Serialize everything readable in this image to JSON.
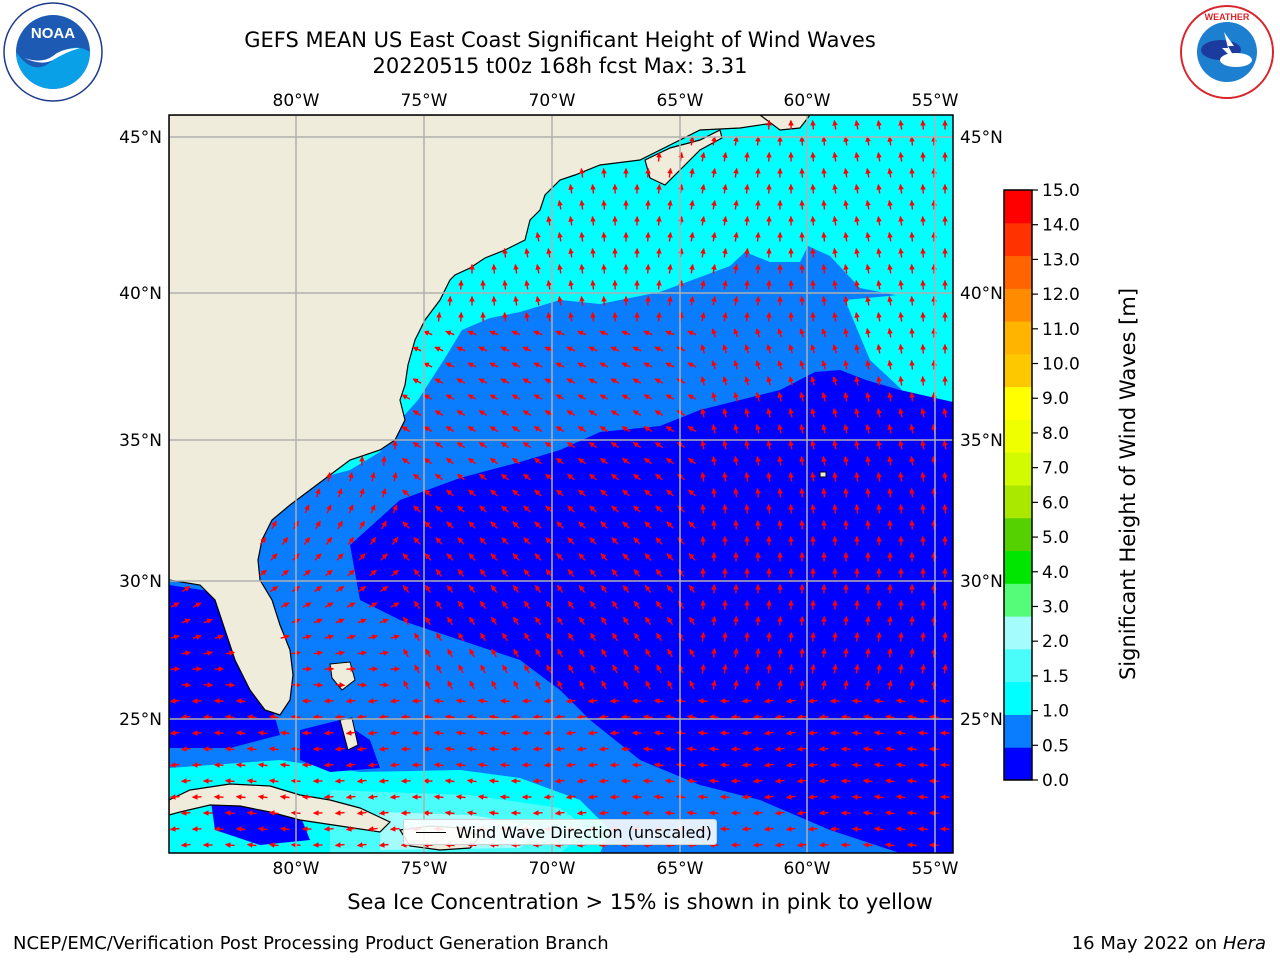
{
  "title": {
    "line1": "GEFS MEAN US East Coast Significant Height of Wind Waves",
    "line2": "20220515 t00z 168h fcst   Max: 3.31"
  },
  "map": {
    "region": "US East Coast / Western North Atlantic",
    "lon_labels": [
      "80°W",
      "75°W",
      "70°W",
      "65°W",
      "60°W",
      "55°W"
    ],
    "lat_labels": [
      "45°N",
      "40°N",
      "35°N",
      "30°N",
      "25°N"
    ],
    "arrow_color": "#ff0000",
    "land_color": "#efecdb",
    "legend_label": "Wind Wave Direction (unscaled)"
  },
  "colorbar": {
    "title": "Significant Height of Wind Waves [m]",
    "tick_labels": [
      "0.0",
      "0.5",
      "1.0",
      "1.5",
      "2.0",
      "3.0",
      "4.0",
      "5.0",
      "6.0",
      "7.0",
      "8.0",
      "9.0",
      "10.0",
      "11.0",
      "12.0",
      "13.0",
      "14.0",
      "15.0"
    ],
    "colors": [
      "#0000ff",
      "#0a7dff",
      "#00ffff",
      "#4afcfa",
      "#a5fcfd",
      "#55fc7a",
      "#00e600",
      "#55d000",
      "#aae800",
      "#d2fa00",
      "#f0ff00",
      "#ffff00",
      "#fec800",
      "#ffb400",
      "#ff8c00",
      "#ff6400",
      "#ff3200",
      "#ff0000"
    ]
  },
  "ice_note": "Sea Ice Concentration > 15% is shown in pink to yellow",
  "footer": {
    "left": "NCEP/EMC/Verification Post Processing Product Generation Branch",
    "right_date": "16 May 2022 on",
    "right_host": "Hera"
  }
}
